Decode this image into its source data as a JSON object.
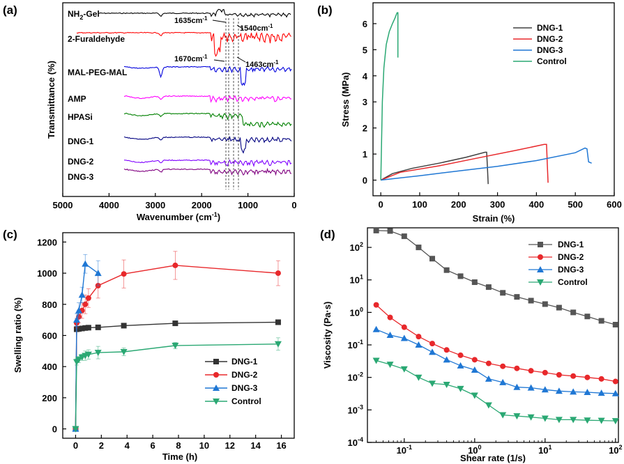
{
  "chart_data": [
    {
      "panel": "(a)",
      "type": "line",
      "xlabel": "Wavenumber (cm-1)",
      "ylabel": "Transmittance (%)",
      "xlim": [
        5000,
        0
      ],
      "xticks": [
        "5000",
        "4000",
        "3000",
        "2000",
        "1000",
        "0"
      ],
      "series": [
        {
          "name": "NH2-Gel",
          "color": "#000000"
        },
        {
          "name": "2-Furaldehyde",
          "color": "#ff0000"
        },
        {
          "name": "MAL-PEG-MAL",
          "color": "#0000dd"
        },
        {
          "name": "AMP",
          "color": "#ff00ff"
        },
        {
          "name": "HPASi",
          "color": "#008000"
        },
        {
          "name": "DNG-1",
          "color": "#000080"
        },
        {
          "name": "DNG-2",
          "color": "#7f00ff"
        },
        {
          "name": "DNG-3",
          "color": "#800080"
        }
      ],
      "annotations": [
        "1635cm-1",
        "1540cm-1",
        "1670cm-1",
        "1463cm-1"
      ]
    },
    {
      "panel": "(b)",
      "type": "line",
      "xlabel": "Strain (%)",
      "ylabel": "Stress (MPa)",
      "xlim": [
        -20,
        600
      ],
      "ylim": [
        -0.6,
        6.8
      ],
      "xticks": [
        "0",
        "100",
        "200",
        "300",
        "400",
        "500",
        "600"
      ],
      "yticks": [
        "0",
        "1",
        "2",
        "3",
        "4",
        "5",
        "6"
      ],
      "series": [
        {
          "name": "DNG-1",
          "color": "#404040",
          "x": [
            0,
            30,
            80,
            150,
            220,
            268,
            272,
            274,
            276
          ],
          "y": [
            0,
            0.25,
            0.45,
            0.65,
            0.88,
            1.07,
            1.07,
            0.5,
            -0.15
          ]
        },
        {
          "name": "DNG-2",
          "color": "#e8282b",
          "x": [
            0,
            50,
            150,
            250,
            350,
            420,
            426,
            428,
            430
          ],
          "y": [
            0,
            0.3,
            0.55,
            0.85,
            1.15,
            1.37,
            1.37,
            0.6,
            -0.1
          ]
        },
        {
          "name": "DNG-3",
          "color": "#1f77d4",
          "x": [
            0,
            100,
            200,
            300,
            400,
            500,
            525,
            530,
            534,
            542
          ],
          "y": [
            0,
            0.17,
            0.35,
            0.53,
            0.75,
            1.05,
            1.23,
            1.2,
            0.7,
            0.65
          ]
        },
        {
          "name": "Control",
          "color": "#2aa873",
          "x": [
            0,
            2,
            4,
            8,
            14,
            22,
            30,
            36,
            40,
            42,
            44,
            44
          ],
          "y": [
            0,
            1.5,
            3.0,
            4.3,
            5.2,
            5.7,
            6.0,
            6.2,
            6.35,
            6.42,
            6.42,
            4.7
          ]
        }
      ]
    },
    {
      "panel": "(c)",
      "type": "line",
      "xlabel": "Time (h)",
      "ylabel": "Swelling ratio (%)",
      "xlim": [
        -1,
        17
      ],
      "ylim": [
        -60,
        1260
      ],
      "xticks": [
        "0",
        "2",
        "4",
        "6",
        "8",
        "10",
        "12",
        "14",
        "16"
      ],
      "yticks": [
        "0",
        "200",
        "400",
        "600",
        "800",
        "1000",
        "1200"
      ],
      "series": [
        {
          "name": "DNG-1",
          "color": "#333333",
          "marker": "square",
          "x": [
            0,
            0.083,
            0.25,
            0.5,
            0.75,
            1,
            1.75,
            3.75,
            7.75,
            15.75
          ],
          "y": [
            0,
            640,
            642,
            645,
            648,
            650,
            652,
            663,
            678,
            685
          ]
        },
        {
          "name": "DNG-2",
          "color": "#e8282b",
          "marker": "circle",
          "x": [
            0,
            0.083,
            0.25,
            0.5,
            0.75,
            1,
            1.75,
            3.75,
            7.75,
            15.75
          ],
          "y": [
            0,
            680,
            720,
            760,
            800,
            840,
            920,
            995,
            1050,
            1000
          ],
          "err": [
            0,
            30,
            40,
            50,
            60,
            60,
            80,
            90,
            90,
            80
          ]
        },
        {
          "name": "DNG-3",
          "color": "#1f77d4",
          "marker": "triangle-up",
          "x": [
            0,
            0.083,
            0.25,
            0.5,
            0.75,
            1.75
          ],
          "y": [
            0,
            700,
            760,
            860,
            1060,
            1000
          ],
          "err": [
            0,
            40,
            50,
            50,
            60,
            80
          ]
        },
        {
          "name": "Control",
          "color": "#2aa873",
          "marker": "triangle-down",
          "x": [
            0,
            0.083,
            0.25,
            0.5,
            0.75,
            1,
            1.75,
            3.75,
            7.75,
            15.75
          ],
          "y": [
            0,
            430,
            445,
            460,
            470,
            478,
            490,
            495,
            535,
            545
          ],
          "err": [
            0,
            20,
            20,
            20,
            30,
            30,
            40,
            25,
            20,
            40
          ]
        }
      ]
    },
    {
      "panel": "(d)",
      "type": "line",
      "xlabel": "Shear rate (1/s)",
      "ylabel": "Viscosity (Pa·s)",
      "xscale": "log",
      "yscale": "log",
      "xlim": [
        0.03,
        110
      ],
      "ylim": [
        0.0001,
        400
      ],
      "xticks": [
        "10-1",
        "100",
        "101",
        "102"
      ],
      "yticks": [
        "10-4",
        "10-3",
        "10-2",
        "10-1",
        "100",
        "101",
        "102"
      ],
      "series": [
        {
          "name": "DNG-1",
          "color": "#555555",
          "marker": "square",
          "x": [
            0.04,
            0.063,
            0.1,
            0.16,
            0.25,
            0.4,
            0.63,
            1,
            1.58,
            2.51,
            3.98,
            6.31,
            10,
            15.8,
            25.1,
            39.8,
            63.1,
            100
          ],
          "y": [
            330,
            320,
            220,
            100,
            45,
            20,
            13,
            8.5,
            6,
            4,
            3,
            2.3,
            1.8,
            1.4,
            1.0,
            0.75,
            0.55,
            0.42
          ]
        },
        {
          "name": "DNG-2",
          "color": "#e8282b",
          "marker": "circle",
          "x": [
            0.04,
            0.063,
            0.1,
            0.16,
            0.25,
            0.4,
            0.63,
            1,
            1.58,
            2.51,
            3.98,
            6.31,
            10,
            15.8,
            25.1,
            39.8,
            63.1,
            100
          ],
          "y": [
            1.7,
            0.7,
            0.35,
            0.18,
            0.11,
            0.07,
            0.048,
            0.035,
            0.027,
            0.022,
            0.019,
            0.016,
            0.014,
            0.012,
            0.011,
            0.01,
            0.009,
            0.0075
          ]
        },
        {
          "name": "DNG-3",
          "color": "#1f77d4",
          "marker": "triangle-up",
          "x": [
            0.04,
            0.063,
            0.1,
            0.16,
            0.25,
            0.4,
            0.63,
            1,
            1.58,
            2.51,
            3.98,
            6.31,
            10,
            15.8,
            25.1,
            39.8,
            63.1,
            100
          ],
          "y": [
            0.3,
            0.2,
            0.16,
            0.1,
            0.06,
            0.035,
            0.023,
            0.017,
            0.009,
            0.007,
            0.005,
            0.0048,
            0.0042,
            0.0038,
            0.0036,
            0.0035,
            0.0033,
            0.0032
          ]
        },
        {
          "name": "Control",
          "color": "#2aa873",
          "marker": "triangle-down",
          "x": [
            0.04,
            0.063,
            0.1,
            0.16,
            0.25,
            0.4,
            0.63,
            1,
            1.58,
            2.51,
            3.98,
            6.31,
            10,
            15.8,
            25.1,
            39.8,
            63.1,
            100
          ],
          "y": [
            0.033,
            0.025,
            0.018,
            0.01,
            0.0065,
            0.006,
            0.0045,
            0.0028,
            0.0014,
            0.0007,
            0.00065,
            0.0006,
            0.00055,
            0.0005,
            0.0005,
            0.00048,
            0.00047,
            0.00046
          ]
        }
      ]
    }
  ]
}
